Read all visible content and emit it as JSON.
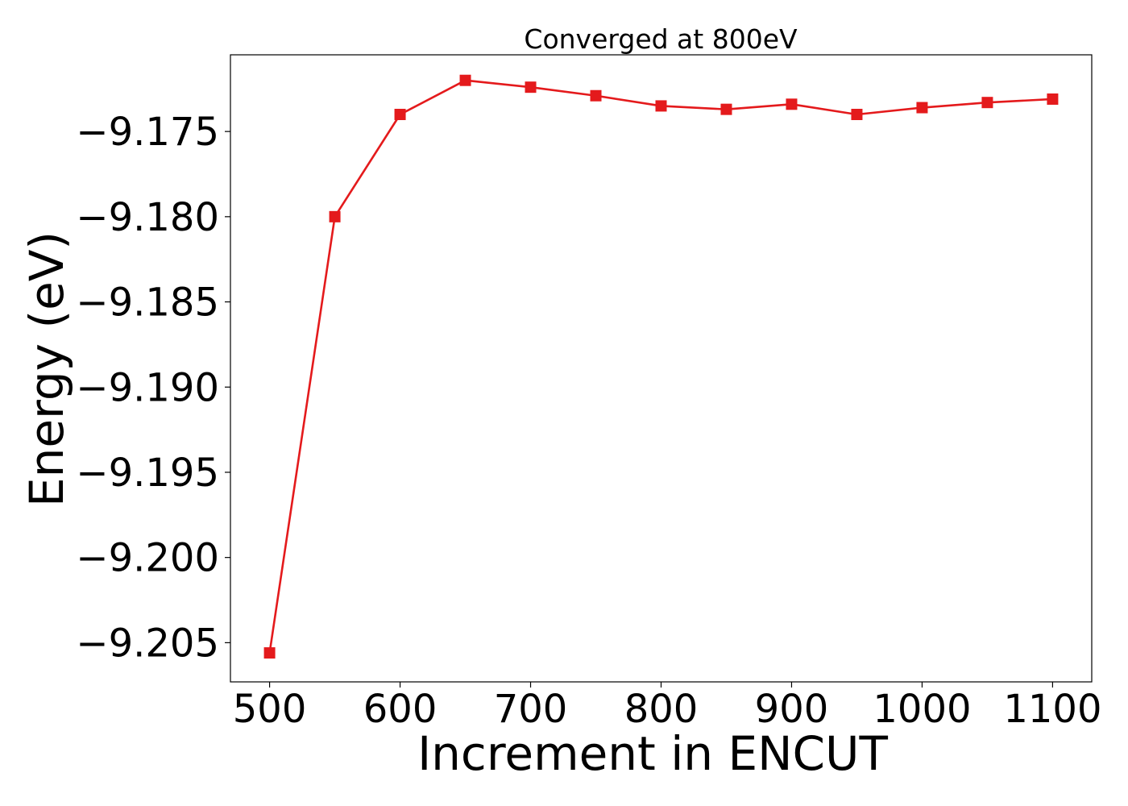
{
  "chart_data": {
    "type": "line",
    "title": "Converged at 800eV",
    "xlabel": "Increment in ENCUT",
    "ylabel": "Energy (eV)",
    "xlim": [
      470,
      1130
    ],
    "ylim": [
      -9.2073,
      -9.1705
    ],
    "xticks": [
      500,
      600,
      700,
      800,
      900,
      1000,
      1100
    ],
    "xtick_labels": [
      "500",
      "600",
      "700",
      "800",
      "900",
      "1000",
      "1100"
    ],
    "yticks": [
      -9.175,
      -9.18,
      -9.185,
      -9.19,
      -9.195,
      -9.2,
      -9.205
    ],
    "ytick_labels": [
      "−9.175",
      "−9.180",
      "−9.185",
      "−9.190",
      "−9.195",
      "−9.200",
      "−9.205"
    ],
    "grid": false,
    "series": [
      {
        "color": "#e41a1c",
        "marker": "square",
        "x": [
          500,
          550,
          600,
          650,
          700,
          750,
          800,
          850,
          900,
          950,
          1000,
          1050,
          1100
        ],
        "y": [
          -9.2056,
          -9.18,
          -9.174,
          -9.172,
          -9.1724,
          -9.1729,
          -9.1735,
          -9.1737,
          -9.1734,
          -9.174,
          -9.1736,
          -9.1733,
          -9.1731
        ]
      }
    ]
  }
}
